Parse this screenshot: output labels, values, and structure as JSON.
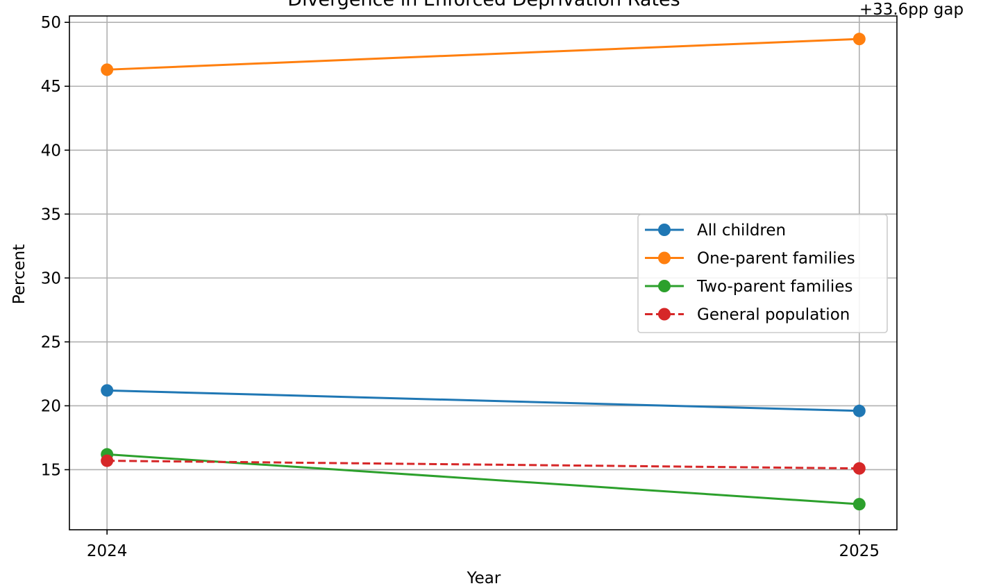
{
  "chart_data": {
    "type": "line",
    "title": "Divergence in Enforced Deprivation Rates",
    "xlabel": "Year",
    "ylabel": "Percent",
    "categories": [
      "2024",
      "2025"
    ],
    "xlim": [
      2023.95,
      2025.05
    ],
    "ylim": [
      10.3,
      50.5
    ],
    "yticks": [
      15,
      20,
      25,
      30,
      35,
      40,
      45,
      50
    ],
    "grid": true,
    "legend_position": "center-right",
    "series": [
      {
        "name": "All children",
        "values": [
          21.2,
          19.6
        ],
        "color": "#1f77b4",
        "dashed": false
      },
      {
        "name": "One-parent families",
        "values": [
          46.3,
          48.7
        ],
        "color": "#ff7f0e",
        "dashed": false
      },
      {
        "name": "Two-parent families",
        "values": [
          16.2,
          12.3
        ],
        "color": "#2ca02c",
        "dashed": false
      },
      {
        "name": "General population",
        "values": [
          15.7,
          15.1
        ],
        "color": "#d62728",
        "dashed": true
      }
    ],
    "annotations": [
      {
        "text": "+33.6pp gap",
        "x": "2025",
        "y": 50.6
      }
    ]
  }
}
